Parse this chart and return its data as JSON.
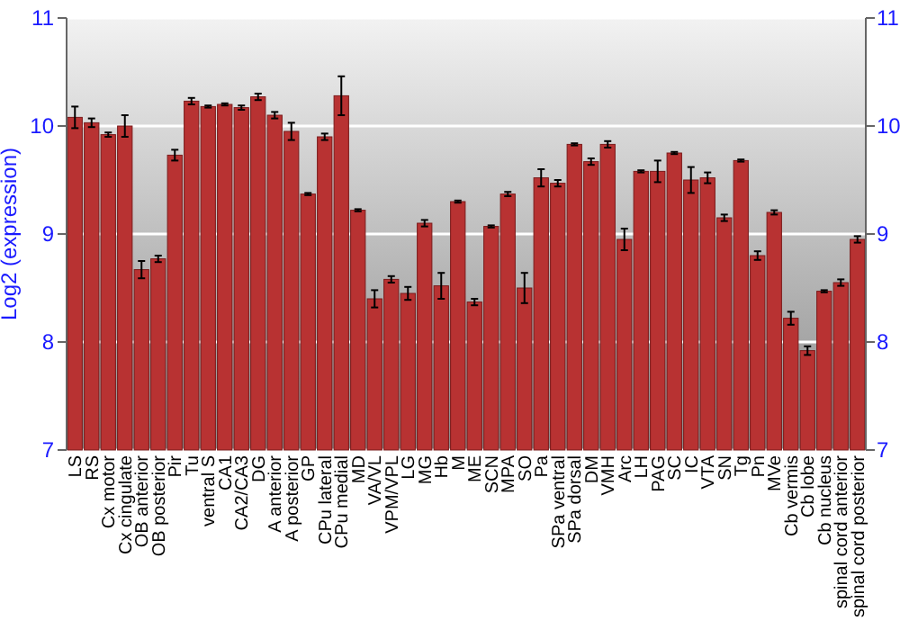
{
  "chart_data": {
    "type": "bar",
    "ylabel": "Log2 (expression)",
    "categories": [
      "LS",
      "RS",
      "Cx motor",
      "Cx cingulate",
      "OB anterior",
      "OB posterior",
      "Pir",
      "Tu",
      "ventral S",
      "CA1",
      "CA2/CA3",
      "DG",
      "A anterior",
      "A posterior",
      "GP",
      "CPu lateral",
      "CPu medial",
      "MD",
      "VA/VL",
      "VPM/VPL",
      "LG",
      "MG",
      "Hb",
      "M",
      "ME",
      "SCN",
      "MPA",
      "SO",
      "Pa",
      "SPa ventral",
      "SPa dorsal",
      "DM",
      "VMH",
      "Arc",
      "LH",
      "PAG",
      "SC",
      "IC",
      "VTA",
      "SN",
      "Tg",
      "Pn",
      "MVe",
      "Cb vermis",
      "Cb lobe",
      "Cb nucleus",
      "spinal cord anterior",
      "spinal cord posterior"
    ],
    "values": [
      10.08,
      10.03,
      9.92,
      10.0,
      8.67,
      8.77,
      9.73,
      10.23,
      10.18,
      10.2,
      10.17,
      10.27,
      10.1,
      9.95,
      9.37,
      9.9,
      10.28,
      9.22,
      8.4,
      8.58,
      8.45,
      9.1,
      8.52,
      9.3,
      8.37,
      9.07,
      9.37,
      8.5,
      9.52,
      9.47,
      9.83,
      9.67,
      9.83,
      8.95,
      9.58,
      9.58,
      9.75,
      9.5,
      9.52,
      9.15,
      9.68,
      8.8,
      9.2,
      8.22,
      7.92,
      8.47,
      8.55,
      8.95
    ],
    "errors": [
      0.1,
      0.04,
      0.02,
      0.1,
      0.08,
      0.03,
      0.05,
      0.03,
      0.01,
      0.01,
      0.02,
      0.03,
      0.03,
      0.08,
      0.01,
      0.03,
      0.18,
      0.01,
      0.08,
      0.03,
      0.06,
      0.03,
      0.12,
      0.01,
      0.03,
      0.01,
      0.02,
      0.14,
      0.08,
      0.03,
      0.01,
      0.03,
      0.03,
      0.1,
      0.01,
      0.1,
      0.01,
      0.12,
      0.05,
      0.03,
      0.01,
      0.04,
      0.02,
      0.06,
      0.04,
      0.01,
      0.03,
      0.03
    ],
    "color": "#b83232",
    "ylim": [
      7,
      11
    ],
    "yticks": [
      7,
      8,
      9,
      10,
      11
    ],
    "y2lim": [
      7,
      11
    ],
    "y2ticks": [
      7,
      8,
      9,
      10,
      11
    ],
    "grid": "y"
  }
}
